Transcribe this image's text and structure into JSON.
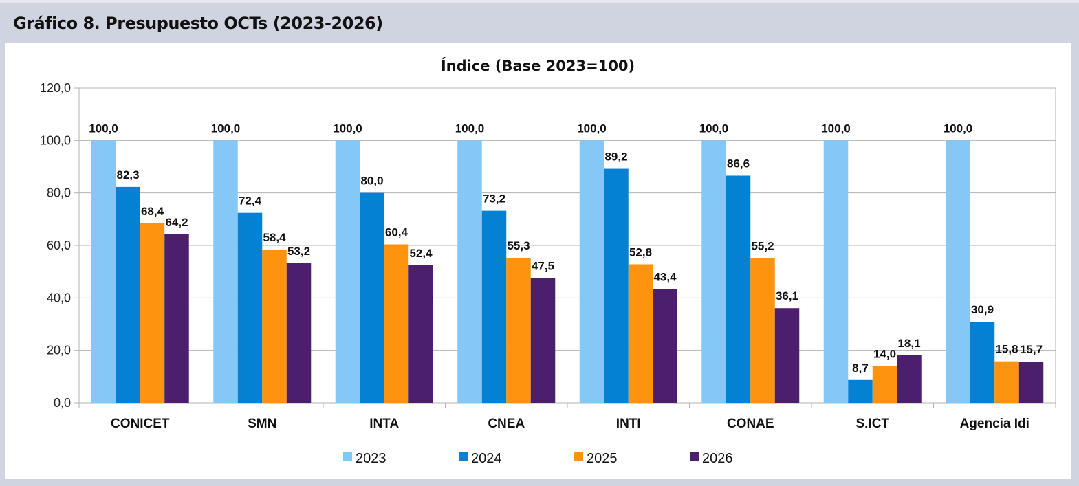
{
  "figure_title": "Gráfico 8. Presupuesto OCTs (2023-2026)",
  "chart_data": {
    "type": "bar",
    "title": "Índice (Base 2023=100)",
    "xlabel": "",
    "ylabel": "",
    "ylim": [
      0,
      120
    ],
    "yticks": [
      0,
      20,
      40,
      60,
      80,
      100,
      120
    ],
    "ytick_labels": [
      "0,0",
      "20,0",
      "40,0",
      "60,0",
      "80,0",
      "100,0",
      "120,0"
    ],
    "grid": true,
    "legend_position": "bottom",
    "categories": [
      "CONICET",
      "SMN",
      "INTA",
      "CNEA",
      "INTI",
      "CONAE",
      "S.ICT",
      "Agencia Idi"
    ],
    "series": [
      {
        "name": "2023",
        "color": "#85c8f8",
        "values": [
          100.0,
          100.0,
          100.0,
          100.0,
          100.0,
          100.0,
          100.0,
          100.0
        ],
        "labels": [
          "100,0",
          "100,0",
          "100,0",
          "100,0",
          "100,0",
          "100,0",
          "100,0",
          "100,0"
        ]
      },
      {
        "name": "2024",
        "color": "#0581d3",
        "values": [
          82.3,
          72.4,
          80.0,
          73.2,
          89.2,
          86.6,
          8.7,
          30.9
        ],
        "labels": [
          "82,3",
          "72,4",
          "80,0",
          "73,2",
          "89,2",
          "86,6",
          "8,7",
          "30,9"
        ]
      },
      {
        "name": "2025",
        "color": "#fd930f",
        "values": [
          68.4,
          58.4,
          60.4,
          55.3,
          52.8,
          55.2,
          14.0,
          15.8
        ],
        "labels": [
          "68,4",
          "58,4",
          "60,4",
          "55,3",
          "52,8",
          "55,2",
          "14,0",
          "15,8"
        ]
      },
      {
        "name": "2026",
        "color": "#4b1f6e",
        "values": [
          64.2,
          53.2,
          52.4,
          47.5,
          43.4,
          36.1,
          18.1,
          15.7
        ],
        "labels": [
          "64,2",
          "53,2",
          "52,4",
          "47,5",
          "43,4",
          "36,1",
          "18,1",
          "15,7"
        ]
      }
    ]
  }
}
